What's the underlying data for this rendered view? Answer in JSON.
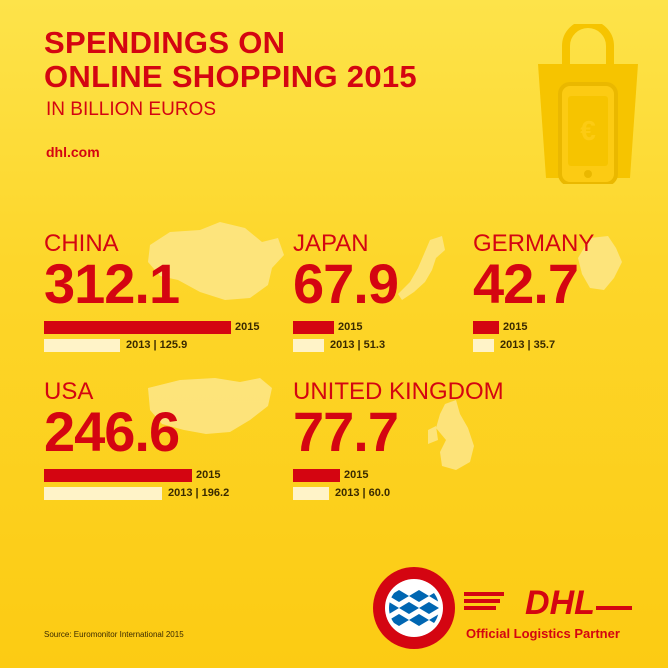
{
  "header": {
    "title_line1": "SPENDINGS ON",
    "title_line2": "ONLINE SHOPPING 2015",
    "subtitle": "IN BILLION EUROS",
    "site": "dhl.com"
  },
  "chart_data": {
    "type": "bar",
    "title": "SPENDINGS ON ONLINE SHOPPING 2015",
    "subtitle": "IN BILLION EUROS",
    "categories": [
      "CHINA",
      "JAPAN",
      "GERMANY",
      "USA",
      "UNITED KINGDOM"
    ],
    "series": [
      {
        "name": "2015",
        "values": [
          312.1,
          67.9,
          42.7,
          246.6,
          77.7
        ]
      },
      {
        "name": "2013",
        "values": [
          125.9,
          51.3,
          35.7,
          196.2,
          60.0
        ]
      }
    ],
    "items": [
      {
        "country": "CHINA",
        "value_2015": "312.1",
        "label_2015": "2015",
        "label_2013": "2013 | 125.9"
      },
      {
        "country": "JAPAN",
        "value_2015": "67.9",
        "label_2015": "2015",
        "label_2013": "2013 | 51.3"
      },
      {
        "country": "GERMANY",
        "value_2015": "42.7",
        "label_2015": "2015",
        "label_2013": "2013 | 35.7"
      },
      {
        "country": "USA",
        "value_2015": "246.6",
        "label_2015": "2015",
        "label_2013": "2013 | 196.2"
      },
      {
        "country": "UNITED KINGDOM",
        "value_2015": "77.7",
        "label_2015": "2015",
        "label_2013": "2013 | 60.0"
      }
    ]
  },
  "footer": {
    "source": "Source: Euromonitor International 2015",
    "partner": "Official Logistics Partner",
    "dhl_logo": "DHL",
    "fcb_logo_text": "FC BAYERN MÜNCHEN"
  },
  "colors": {
    "accent": "#d40511",
    "background": "#fccb13",
    "bar_2013": "#fff3c8"
  },
  "icons": [
    "shopping-bag-icon",
    "smartphone-icon",
    "euro-icon"
  ]
}
